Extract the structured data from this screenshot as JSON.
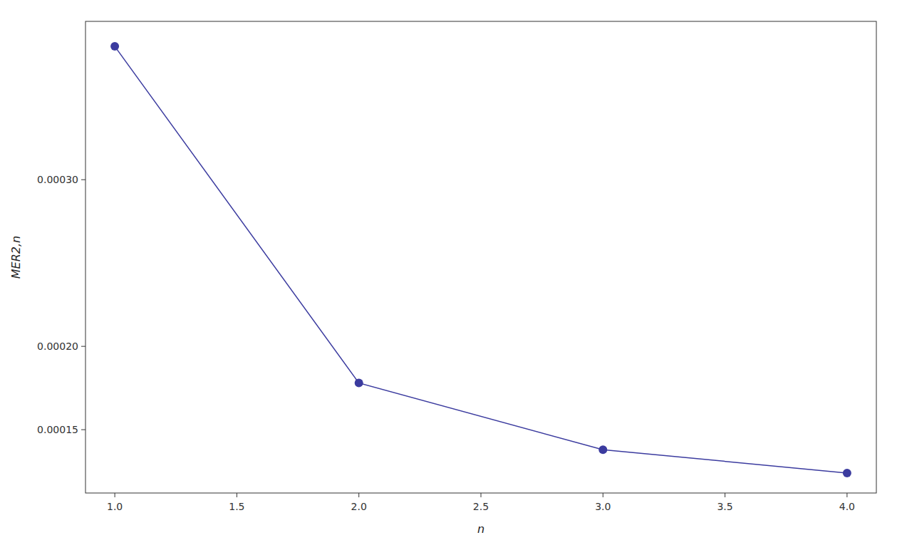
{
  "chart_data": {
    "type": "line",
    "x": [
      1,
      2,
      3,
      4
    ],
    "values": [
      0.00038,
      0.000178,
      0.000138,
      0.000124
    ],
    "color": "#3B3B9F",
    "marker": "circle",
    "xlabel": "n",
    "ylabel": "MER2,n",
    "xlim": [
      0.88,
      4.12
    ],
    "ylim": [
      0.000112,
      0.000395
    ],
    "xticks": [
      {
        "value": 1.0,
        "label": "1.0"
      },
      1.5,
      {
        "value": 2.0,
        "label": "2.0"
      },
      2.5,
      {
        "value": 3.0,
        "label": "3.0"
      },
      3.5,
      {
        "value": 4.0,
        "label": "4.0"
      }
    ],
    "yticks": [
      0.00015,
      {
        "value": 0.0002,
        "label": "0.00020"
      },
      {
        "value": 0.0003,
        "label": "0.00030"
      }
    ],
    "grid": false
  }
}
